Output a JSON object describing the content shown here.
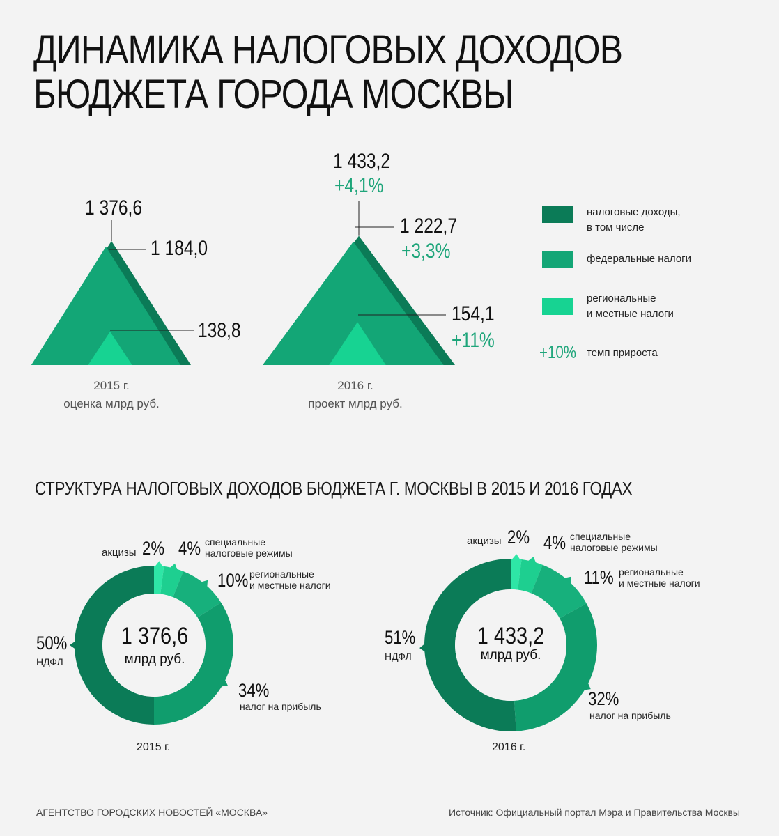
{
  "title_line1": "ДИНАМИКА НАЛОГОВЫХ ДОХОДОВ",
  "title_line2": "БЮДЖЕТА ГОРОДА МОСКВЫ",
  "chart_data": [
    {
      "type": "area",
      "series": [
        {
          "name": "налоговые доходы, в том числе",
          "values": [
            1376.6,
            1433.2
          ]
        },
        {
          "name": "федеральные налоги",
          "values": [
            1184.0,
            1222.7
          ]
        },
        {
          "name": "региональные и местные налоги",
          "values": [
            138.8,
            154.1
          ]
        }
      ],
      "categories": [
        "2015 г. оценка млрд руб.",
        "2016 г. проект млрд руб."
      ],
      "labels_2015": {
        "total": "1 376,6",
        "federal": "1 184,0",
        "regional": "138,8"
      },
      "labels_2016": {
        "total": "1 433,2",
        "total_growth": "+4,1%",
        "federal": "1 222,7",
        "federal_growth": "+3,3%",
        "regional": "154,1",
        "regional_growth": "+11%"
      },
      "caption_2015": [
        "2015 г.",
        "оценка млрд руб."
      ],
      "caption_2016": [
        "2016 г.",
        "проект млрд руб."
      ],
      "legend": {
        "total": [
          "налоговые доходы,",
          "в том числе"
        ],
        "federal": "федеральные налоги",
        "regional": [
          "региональные",
          "и местные налоги"
        ],
        "growth_sample": "+10%",
        "growth_text": "темп прироста"
      },
      "colors": {
        "total": "#0b7b57",
        "federal": "#13a676",
        "regional": "#17d392",
        "growth": "#1ea57a"
      }
    },
    {
      "type": "pie",
      "title": "СТРУКТУРА НАЛОГОВЫХ ДОХОДОВ БЮДЖЕТА Г. МОСКВЫ В 2015 И 2016 ГОДАХ",
      "charts": [
        {
          "year": "2015 г.",
          "center_value": "1 376,6",
          "center_unit": "млрд руб.",
          "slices": [
            {
              "name": "акцизы",
              "value": 2,
              "label": "2%"
            },
            {
              "name": "специальные налоговые режимы",
              "value": 4,
              "label": "4%"
            },
            {
              "name": "региональные и местные налоги",
              "value": 10,
              "label": "10%"
            },
            {
              "name": "налог на прибыль",
              "value": 34,
              "label": "34%"
            },
            {
              "name": "НДФЛ",
              "value": 50,
              "label": "50%"
            }
          ]
        },
        {
          "year": "2016 г.",
          "center_value": "1 433,2",
          "center_unit": "млрд руб.",
          "slices": [
            {
              "name": "акцизы",
              "value": 2,
              "label": "2%"
            },
            {
              "name": "специальные налоговые режимы",
              "value": 4,
              "label": "4%"
            },
            {
              "name": "региональные и местные налоги",
              "value": 11,
              "label": "11%"
            },
            {
              "name": "налог на прибыль",
              "value": 32,
              "label": "32%"
            },
            {
              "name": "НДФЛ",
              "value": 51,
              "label": "51%"
            }
          ]
        }
      ],
      "slice_labels": {
        "excise": "акцизы",
        "special": [
          "специальные",
          "налоговые режимы"
        ],
        "regional": [
          "региональные",
          "и местные налоги"
        ],
        "profit": "налог на прибыль",
        "ndfl": "НДФЛ"
      },
      "slice_colors": [
        "#2ee6a6",
        "#1ecf90",
        "#17b07c",
        "#109d6d",
        "#0b7b57"
      ]
    }
  ],
  "footer_left": "АГЕНТСТВО ГОРОДСКИХ НОВОСТЕЙ «МОСКВА»",
  "footer_right": "Источник: Официальный портал Мэра и Правительства Москвы"
}
